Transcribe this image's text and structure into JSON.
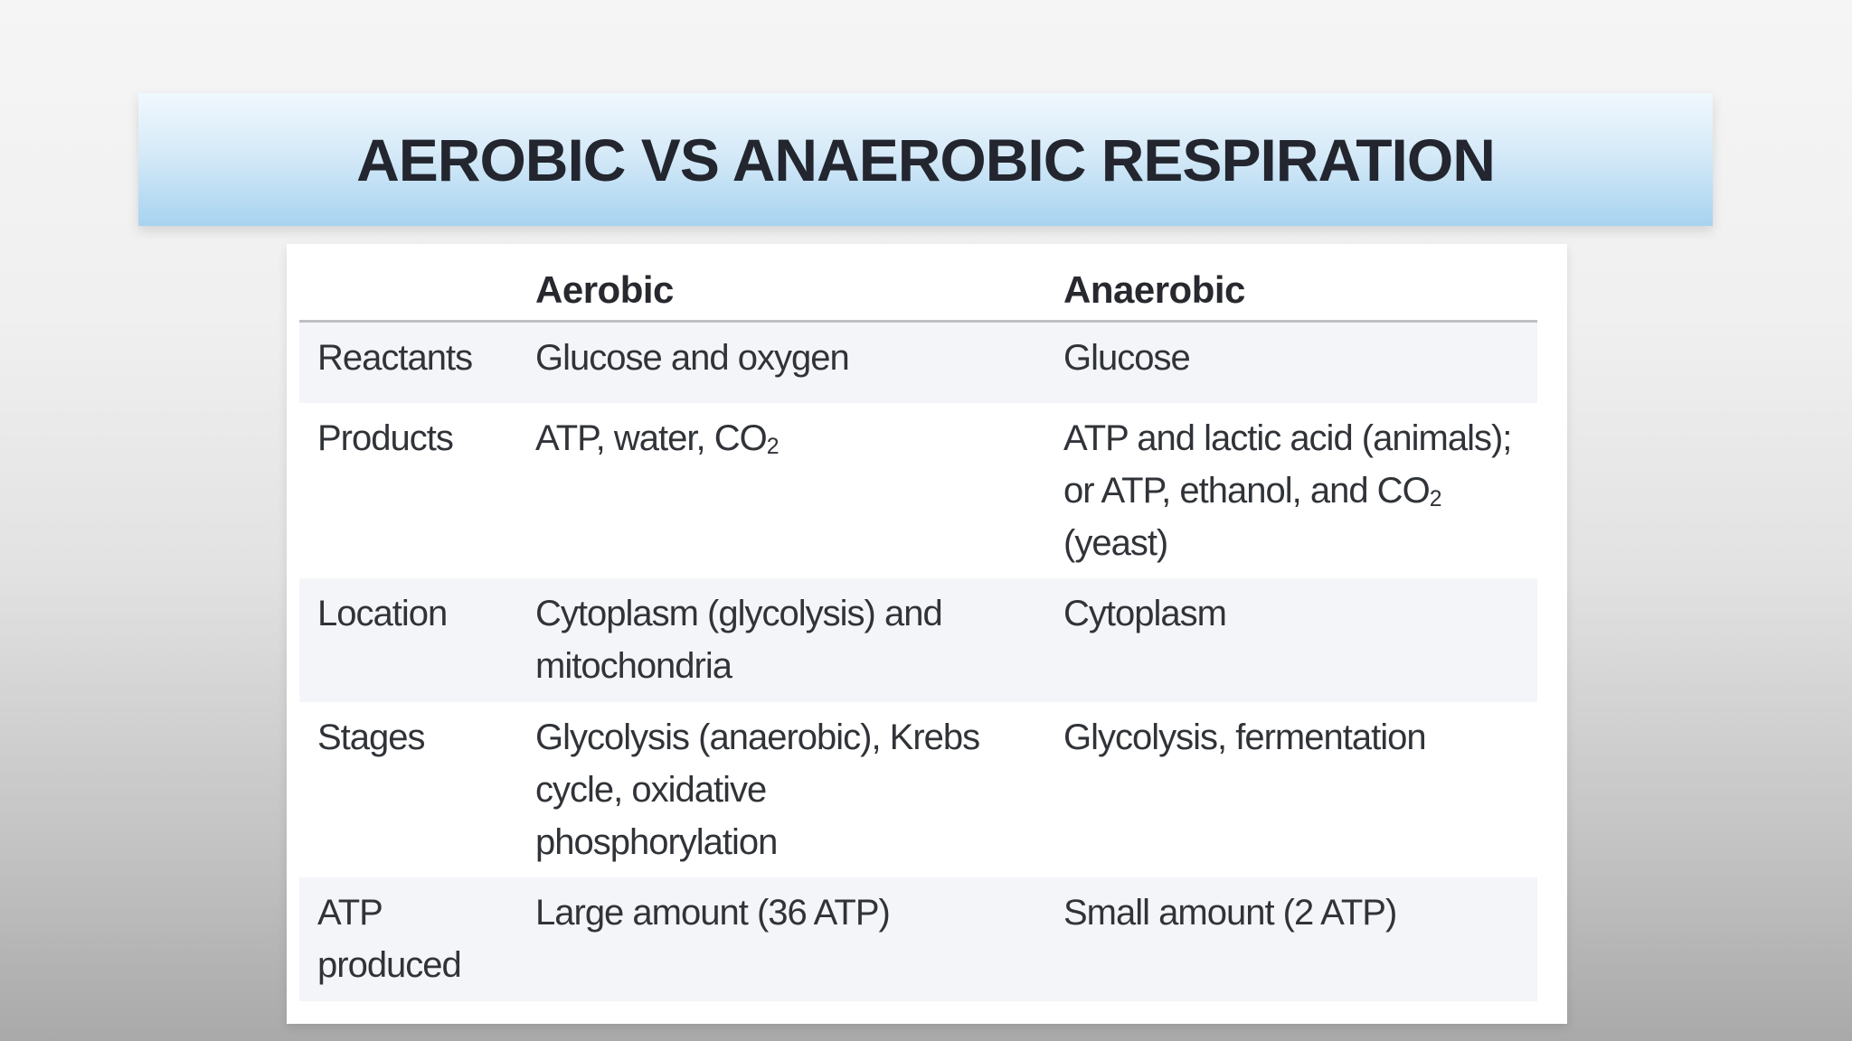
{
  "slide": {
    "title": "AEROBIC VS ANAEROBIC RESPIRATION",
    "colors": {
      "banner_gradient_top": "#f0f8fd",
      "banner_gradient_bottom": "#a7d3f0",
      "title_text": "#23262f",
      "card_background": "#ffffff",
      "shaded_row": "#f4f5f8",
      "divider": "#bfc0c2",
      "body_text": "#303338",
      "page_background_top": "#f5f5f5",
      "page_background_bottom": "#a9a9a9"
    }
  },
  "table": {
    "headers": [
      "",
      "Aerobic",
      "Anaerobic"
    ],
    "rows": [
      {
        "key": "reactants",
        "label": "Reactants",
        "aerobic": "Glucose and oxygen",
        "anaerobic": "Glucose",
        "shaded": true
      },
      {
        "key": "products",
        "label": "Products",
        "aerobic": "ATP, water, CO[2]",
        "anaerobic": "ATP and lactic acid (animals);\nor ATP, ethanol, and CO[2]\n(yeast)",
        "shaded": false
      },
      {
        "key": "location",
        "label": "Location",
        "aerobic": "Cytoplasm (glycolysis) and\nmitochondria",
        "anaerobic": "Cytoplasm",
        "shaded": true
      },
      {
        "key": "stages",
        "label": "Stages",
        "aerobic": "Glycolysis (anaerobic), Krebs\ncycle, oxidative\nphosphorylation",
        "anaerobic": "Glycolysis, fermentation",
        "shaded": false
      },
      {
        "key": "atp",
        "label": "ATP\nproduced",
        "aerobic": "Large amount (36 ATP)",
        "anaerobic": "Small amount (2 ATP)",
        "shaded": true
      }
    ]
  }
}
